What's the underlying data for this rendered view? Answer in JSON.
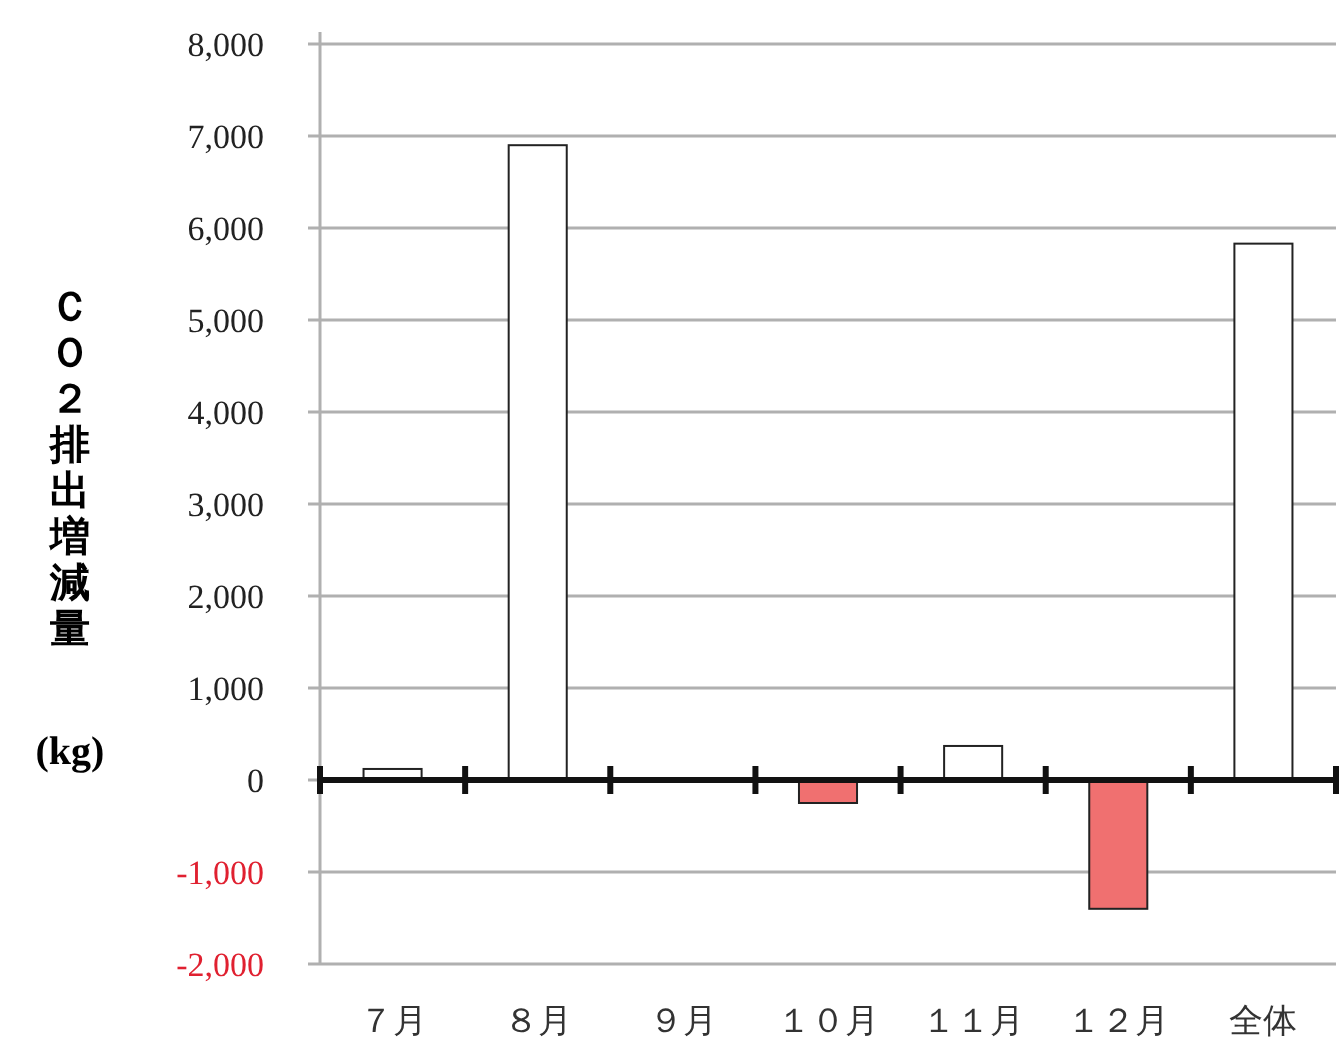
{
  "chart_data": {
    "type": "bar",
    "ylabel": "ＣＯ２排出増減量 (kg)",
    "categories": [
      "７月",
      "８月",
      "９月",
      "１０月",
      "１１月",
      "１２月",
      "全体"
    ],
    "values": [
      120,
      6900,
      0,
      -250,
      370,
      -1400,
      5830
    ],
    "colors": [
      "#ffffff",
      "#ffffff",
      "#ffffff",
      "#f07070",
      "#ffffff",
      "#f07070",
      "#ffffff"
    ],
    "ylim": [
      -2000,
      8000
    ],
    "yticks": [
      {
        "value": -2000,
        "label": "-2,000"
      },
      {
        "value": -1000,
        "label": "-1,000"
      },
      0,
      {
        "value": 1000,
        "label": "1,000"
      },
      {
        "value": 2000,
        "label": "2,000"
      },
      {
        "value": 3000,
        "label": "3,000"
      },
      {
        "value": 4000,
        "label": "4,000"
      },
      {
        "value": 5000,
        "label": "5,000"
      },
      {
        "value": 6000,
        "label": "6,000"
      },
      {
        "value": 7000,
        "label": "7,000"
      },
      {
        "value": 8000,
        "label": "8,000"
      }
    ],
    "grid": "y"
  }
}
